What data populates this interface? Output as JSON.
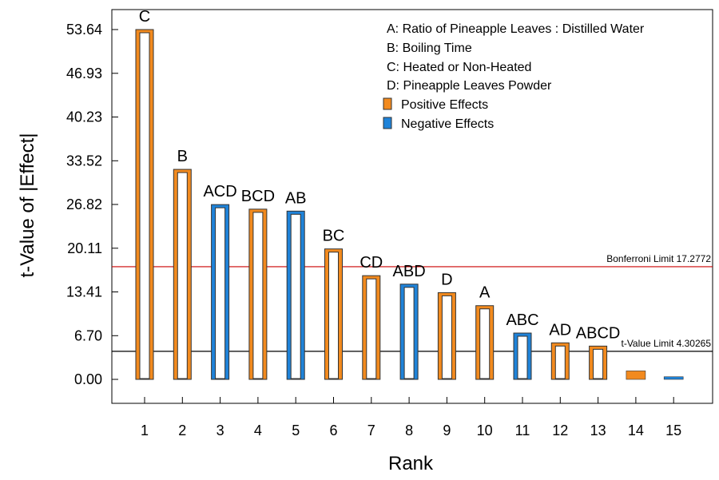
{
  "chart_data": {
    "type": "bar",
    "xlabel": "Rank",
    "ylabel": "t-Value of |Effect|",
    "ylim": [
      0,
      56
    ],
    "y_ticks": [
      "0.00",
      "6.70",
      "13.41",
      "20.11",
      "26.82",
      "33.52",
      "40.23",
      "46.93",
      "53.64"
    ],
    "x_ticks": [
      "1",
      "2",
      "3",
      "4",
      "5",
      "6",
      "7",
      "8",
      "9",
      "10",
      "11",
      "12",
      "13",
      "14",
      "15"
    ],
    "bars": [
      {
        "rank": 1,
        "label": "C",
        "value": 53.64,
        "effect": "positive",
        "style": "hollow"
      },
      {
        "rank": 2,
        "label": "B",
        "value": 32.2,
        "effect": "positive",
        "style": "hollow"
      },
      {
        "rank": 3,
        "label": "ACD",
        "value": 26.8,
        "effect": "negative",
        "style": "hollow"
      },
      {
        "rank": 4,
        "label": "BCD",
        "value": 26.1,
        "effect": "positive",
        "style": "hollow"
      },
      {
        "rank": 5,
        "label": "AB",
        "value": 25.8,
        "effect": "negative",
        "style": "hollow"
      },
      {
        "rank": 6,
        "label": "BC",
        "value": 20.0,
        "effect": "positive",
        "style": "hollow"
      },
      {
        "rank": 7,
        "label": "CD",
        "value": 15.9,
        "effect": "positive",
        "style": "hollow"
      },
      {
        "rank": 8,
        "label": "ABD",
        "value": 14.6,
        "effect": "negative",
        "style": "hollow"
      },
      {
        "rank": 9,
        "label": "D",
        "value": 13.3,
        "effect": "positive",
        "style": "hollow"
      },
      {
        "rank": 10,
        "label": "A",
        "value": 11.3,
        "effect": "positive",
        "style": "hollow"
      },
      {
        "rank": 11,
        "label": "ABC",
        "value": 7.1,
        "effect": "negative",
        "style": "hollow"
      },
      {
        "rank": 12,
        "label": "AD",
        "value": 5.6,
        "effect": "positive",
        "style": "hollow"
      },
      {
        "rank": 13,
        "label": "ABCD",
        "value": 5.1,
        "effect": "positive",
        "style": "hollow"
      },
      {
        "rank": 14,
        "label": "",
        "value": 1.3,
        "effect": "positive",
        "style": "solid"
      },
      {
        "rank": 15,
        "label": "",
        "value": 0.4,
        "effect": "negative",
        "style": "solid"
      }
    ],
    "reference_lines": [
      {
        "label": "Bonferroni Limit 17.2772",
        "value": 17.2772,
        "color": "#cc0000"
      },
      {
        "label": "t-Value Limit 4.30265",
        "value": 4.30265,
        "color": "#000000"
      }
    ],
    "legend": {
      "placement": "top-right",
      "factors": [
        "A: Ratio of Pineapple Leaves : Distilled Water",
        "B: Boiling Time",
        "C: Heated or Non-Heated",
        "D: Pineapple Leaves Powder"
      ],
      "effects": [
        {
          "label": "Positive Effects",
          "color": "#f28a1e"
        },
        {
          "label": "Negative Effects",
          "color": "#1f83d9"
        }
      ]
    },
    "colors": {
      "positive": "#f28a1e",
      "negative": "#1f83d9",
      "bar_edge": "#333333"
    }
  }
}
